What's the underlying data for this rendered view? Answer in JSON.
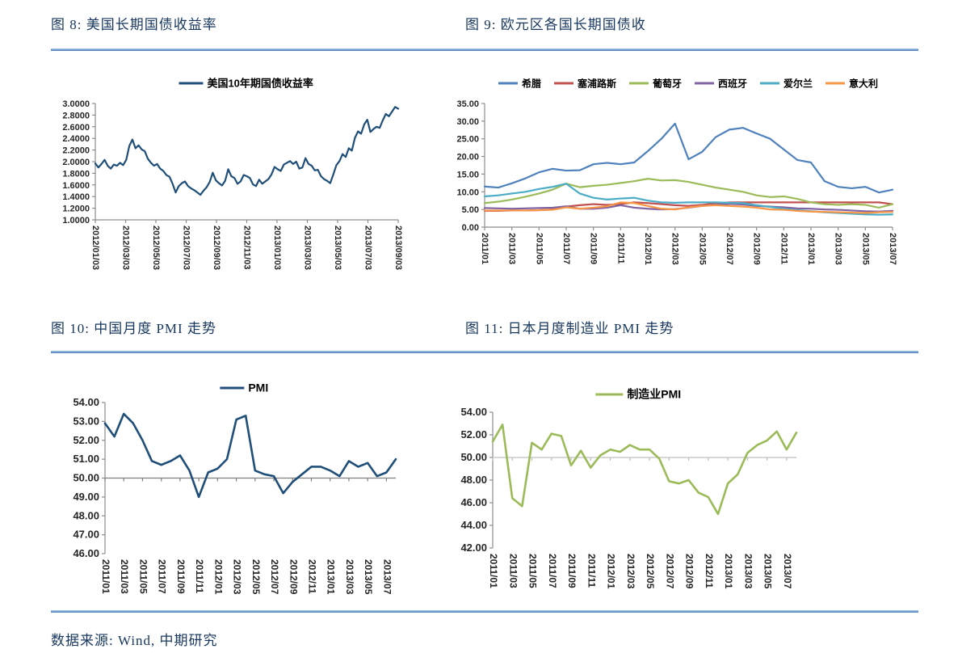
{
  "page": {
    "source_note": "数据来源: Wind, 中期研究"
  },
  "figures": [
    {
      "caption": "图 8: 美国长期国债收益率"
    },
    {
      "caption": "图 9: 欧元区各国长期国债收"
    },
    {
      "caption": "图 10: 中国月度 PMI 走势"
    },
    {
      "caption": "图 11: 日本月度制造业 PMI 走势"
    }
  ],
  "colors": {
    "caption_navy": "#17375E",
    "divider_blue": "#4A7EBB",
    "navy_line": "#1F4E79",
    "tick_label": "#262626",
    "axis_gray": "#8C8C8C"
  },
  "chart_data": [
    {
      "name": "us-10y-treasury-yield",
      "type": "line",
      "title": "图 8: 美国长期国债收益率",
      "legend_entries": [
        {
          "label": "美国10年期国债收益率",
          "color": "#1F4E79"
        }
      ],
      "ylim": [
        1.0,
        3.0
      ],
      "ytick_vals": [
        3.0,
        2.8,
        2.6,
        2.4,
        2.2,
        2.0,
        1.8,
        1.6,
        1.4,
        1.2,
        1.0
      ],
      "ytick_labels": [
        "3.0000",
        "2.8000",
        "2.6000",
        "2.4000",
        "2.2000",
        "2.0000",
        "1.8000",
        "1.6000",
        "1.4000",
        "1.2000",
        "1.0000"
      ],
      "x_labels": [
        "2012/01/03",
        "2012/03/03",
        "2012/05/03",
        "2012/07/03",
        "2012/09/03",
        "2012/11/03",
        "2013/01/03",
        "2013/03/03",
        "2013/05/03",
        "2013/07/03",
        "2013/09/03"
      ],
      "x_label_step": null,
      "axis_cross": 1.0,
      "line_width": 2.2,
      "series": [
        {
          "name": "美国10年期国债收益率",
          "color": "#1F4E79",
          "values": [
            1.97,
            1.9,
            1.96,
            2.03,
            1.93,
            1.88,
            1.95,
            1.93,
            1.98,
            1.94,
            2.03,
            2.27,
            2.38,
            2.23,
            2.28,
            2.21,
            2.18,
            2.05,
            1.98,
            1.93,
            1.96,
            1.88,
            1.84,
            1.77,
            1.74,
            1.62,
            1.47,
            1.58,
            1.63,
            1.66,
            1.58,
            1.54,
            1.51,
            1.47,
            1.43,
            1.5,
            1.56,
            1.65,
            1.81,
            1.68,
            1.63,
            1.59,
            1.67,
            1.87,
            1.75,
            1.72,
            1.62,
            1.66,
            1.77,
            1.75,
            1.72,
            1.61,
            1.58,
            1.69,
            1.62,
            1.66,
            1.7,
            1.78,
            1.91,
            1.87,
            1.84,
            1.95,
            1.98,
            2.01,
            1.96,
            2.0,
            1.88,
            1.9,
            2.06,
            1.96,
            1.93,
            1.85,
            1.86,
            1.75,
            1.7,
            1.67,
            1.63,
            1.78,
            1.94,
            2.01,
            2.13,
            2.08,
            2.23,
            2.19,
            2.41,
            2.52,
            2.48,
            2.64,
            2.72,
            2.51,
            2.56,
            2.6,
            2.58,
            2.71,
            2.82,
            2.78,
            2.86,
            2.94,
            2.91
          ]
        }
      ]
    },
    {
      "name": "eurozone-long-term-bond-yields",
      "type": "line",
      "title": "图 9: 欧元区各国长期国债收",
      "legend_entries": [
        {
          "label": "希腊",
          "color": "#4F81BD"
        },
        {
          "label": "塞浦路斯",
          "color": "#C0504D"
        },
        {
          "label": "葡萄牙",
          "color": "#9BBB59"
        },
        {
          "label": "西班牙",
          "color": "#8064A2"
        },
        {
          "label": "爱尔兰",
          "color": "#4BACC6"
        },
        {
          "label": "意大利",
          "color": "#F79646"
        }
      ],
      "ylim": [
        0,
        35
      ],
      "ytick_vals": [
        35,
        30,
        25,
        20,
        15,
        10,
        5,
        0
      ],
      "ytick_labels": [
        "35.00",
        "30.00",
        "25.00",
        "20.00",
        "15.00",
        "10.00",
        "5.00",
        "0.00"
      ],
      "x_labels": [
        "2011/01",
        "2011/03",
        "2011/05",
        "2011/07",
        "2011/09",
        "2011/11",
        "2012/01",
        "2012/03",
        "2012/05",
        "2012/07",
        "2012/09",
        "2012/11",
        "2013/01",
        "2013/03",
        "2013/05",
        "2013/07"
      ],
      "x_label_step": 2,
      "axis_cross": 0,
      "line_width": 2.2,
      "series": [
        {
          "name": "希腊",
          "color": "#4F81BD",
          "values": [
            11.5,
            11.2,
            12.4,
            13.8,
            15.5,
            16.5,
            16.0,
            16.1,
            17.8,
            18.2,
            17.8,
            18.3,
            21.5,
            25.0,
            29.3,
            19.2,
            21.3,
            25.5,
            27.6,
            28.1,
            26.5,
            25.0,
            22.0,
            19.0,
            18.3,
            13.0,
            11.4,
            11.0,
            11.4,
            9.8,
            10.6
          ]
        },
        {
          "name": "塞浦路斯",
          "color": "#C0504D",
          "values": [
            4.6,
            4.6,
            4.7,
            4.7,
            4.8,
            5.0,
            5.8,
            6.2,
            6.5,
            6.3,
            6.5,
            7.0,
            6.8,
            6.5,
            6.2,
            6.0,
            6.3,
            6.7,
            7.0,
            7.0,
            7.0,
            7.0,
            7.0,
            7.0,
            7.0,
            7.0,
            7.0,
            7.0,
            7.0,
            7.0,
            6.5
          ]
        },
        {
          "name": "葡萄牙",
          "color": "#9BBB59",
          "values": [
            6.8,
            7.2,
            7.8,
            8.6,
            9.5,
            10.6,
            12.3,
            11.3,
            11.7,
            12.0,
            12.5,
            13.0,
            13.7,
            13.2,
            13.3,
            12.8,
            12.0,
            11.2,
            10.6,
            10.0,
            9.0,
            8.5,
            8.7,
            8.0,
            7.0,
            6.5,
            6.3,
            6.5,
            6.3,
            5.5,
            6.5
          ]
        },
        {
          "name": "西班牙",
          "color": "#8064A2",
          "values": [
            5.4,
            5.3,
            5.2,
            5.3,
            5.4,
            5.5,
            5.9,
            5.2,
            5.2,
            5.5,
            6.2,
            5.5,
            5.2,
            5.0,
            5.1,
            5.5,
            6.0,
            6.3,
            6.6,
            6.4,
            6.0,
            5.8,
            5.6,
            5.3,
            5.2,
            5.0,
            4.9,
            4.7,
            4.5,
            4.4,
            4.6
          ]
        },
        {
          "name": "爱尔兰",
          "color": "#4BACC6",
          "values": [
            8.7,
            9.0,
            9.5,
            10.0,
            10.8,
            11.4,
            12.3,
            9.5,
            8.3,
            7.8,
            8.1,
            8.3,
            7.5,
            7.0,
            6.9,
            7.0,
            7.0,
            7.0,
            6.9,
            6.8,
            6.2,
            5.7,
            5.2,
            4.8,
            4.5,
            4.2,
            4.0,
            3.8,
            3.6,
            3.5,
            3.6
          ]
        },
        {
          "name": "意大利",
          "color": "#F79646",
          "values": [
            4.7,
            4.7,
            4.7,
            4.7,
            4.8,
            4.9,
            5.6,
            5.2,
            5.5,
            5.9,
            7.0,
            6.8,
            6.0,
            5.2,
            5.0,
            5.6,
            6.0,
            6.2,
            6.0,
            5.8,
            5.5,
            5.0,
            4.9,
            4.6,
            4.4,
            4.3,
            4.2,
            4.1,
            4.0,
            4.2,
            4.3
          ]
        }
      ]
    },
    {
      "name": "china-monthly-pmi",
      "type": "line",
      "title": "图 10: 中国月度 PMI 走势",
      "legend_entries": [
        {
          "label": "PMI",
          "color": "#1F4E79"
        }
      ],
      "ylim": [
        46,
        54
      ],
      "ytick_vals": [
        54,
        53,
        52,
        51,
        50,
        49,
        48,
        47,
        46
      ],
      "ytick_labels": [
        "54.00",
        "53.00",
        "52.00",
        "51.00",
        "50.00",
        "49.00",
        "48.00",
        "47.00",
        "46.00"
      ],
      "x_labels": [
        "2011/01",
        "2011/03",
        "2011/05",
        "2011/07",
        "2011/09",
        "2011/11",
        "2012/01",
        "2012/03",
        "2012/05",
        "2012/07",
        "2012/09",
        "2012/11",
        "2013/01",
        "2013/03",
        "2013/05",
        "2013/07"
      ],
      "x_label_step": 2,
      "axis_cross": 50,
      "line_width": 2.6,
      "series": [
        {
          "name": "PMI",
          "color": "#1F4E79",
          "values": [
            52.9,
            52.2,
            53.4,
            52.9,
            52.0,
            50.9,
            50.7,
            50.9,
            51.2,
            50.4,
            49.0,
            50.3,
            50.5,
            51.0,
            53.1,
            53.3,
            50.4,
            50.2,
            50.1,
            49.2,
            49.8,
            50.2,
            50.6,
            50.6,
            50.4,
            50.1,
            50.9,
            50.6,
            50.8,
            50.1,
            50.3,
            51.0
          ]
        }
      ]
    },
    {
      "name": "japan-manufacturing-pmi",
      "type": "line",
      "title": "图 11: 日本月度制造业 PMI 走势",
      "legend_entries": [
        {
          "label": "制造业PMI",
          "color": "#9BBB59"
        }
      ],
      "ylim": [
        42,
        54
      ],
      "ytick_vals": [
        54,
        52,
        50,
        48,
        46,
        44,
        42
      ],
      "ytick_labels": [
        "54.00",
        "52.00",
        "50.00",
        "48.00",
        "46.00",
        "44.00",
        "42.00"
      ],
      "x_labels": [
        "2011/01",
        "2011/03",
        "2011/05",
        "2011/07",
        "2011/09",
        "2011/11",
        "2012/01",
        "2012/03",
        "2012/05",
        "2012/07",
        "2012/09",
        "2012/11",
        "2013/01",
        "2013/03",
        "2013/05",
        "2013/07"
      ],
      "x_label_step": 2,
      "axis_cross": 50,
      "line_width": 2.6,
      "series": [
        {
          "name": "制造业PMI",
          "color": "#9BBB59",
          "values": [
            51.4,
            52.9,
            46.4,
            45.7,
            51.3,
            50.7,
            52.1,
            51.9,
            49.3,
            50.6,
            49.1,
            50.2,
            50.7,
            50.5,
            51.1,
            50.7,
            50.7,
            49.9,
            47.9,
            47.7,
            48.0,
            46.9,
            46.5,
            45.0,
            47.7,
            48.5,
            50.4,
            51.1,
            51.5,
            52.3,
            50.7,
            52.2
          ]
        }
      ]
    }
  ]
}
